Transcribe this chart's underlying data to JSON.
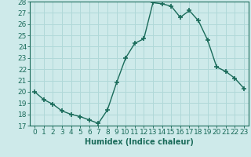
{
  "xlabel": "Humidex (Indice chaleur)",
  "x": [
    0,
    1,
    2,
    3,
    4,
    5,
    6,
    7,
    8,
    9,
    10,
    11,
    12,
    13,
    14,
    15,
    16,
    17,
    18,
    19,
    20,
    21,
    22,
    23
  ],
  "y": [
    20,
    19.3,
    18.9,
    18.3,
    18.0,
    17.8,
    17.5,
    17.2,
    18.4,
    20.8,
    23.0,
    24.3,
    24.7,
    27.9,
    27.8,
    27.6,
    26.6,
    27.2,
    26.3,
    24.6,
    22.2,
    21.8,
    21.2,
    20.3
  ],
  "line_color": "#1a6b5a",
  "marker": "+",
  "markersize": 4,
  "markeredgewidth": 1.2,
  "linewidth": 1.0,
  "ylim": [
    17,
    28
  ],
  "yticks": [
    17,
    18,
    19,
    20,
    21,
    22,
    23,
    24,
    25,
    26,
    27,
    28
  ],
  "xticks": [
    0,
    1,
    2,
    3,
    4,
    5,
    6,
    7,
    8,
    9,
    10,
    11,
    12,
    13,
    14,
    15,
    16,
    17,
    18,
    19,
    20,
    21,
    22,
    23
  ],
  "bg_color": "#ceeaea",
  "grid_color": "#b0d8d8",
  "tick_color": "#1a6b5a",
  "label_color": "#1a6b5a",
  "xlabel_fontsize": 7,
  "tick_fontsize": 6.5
}
